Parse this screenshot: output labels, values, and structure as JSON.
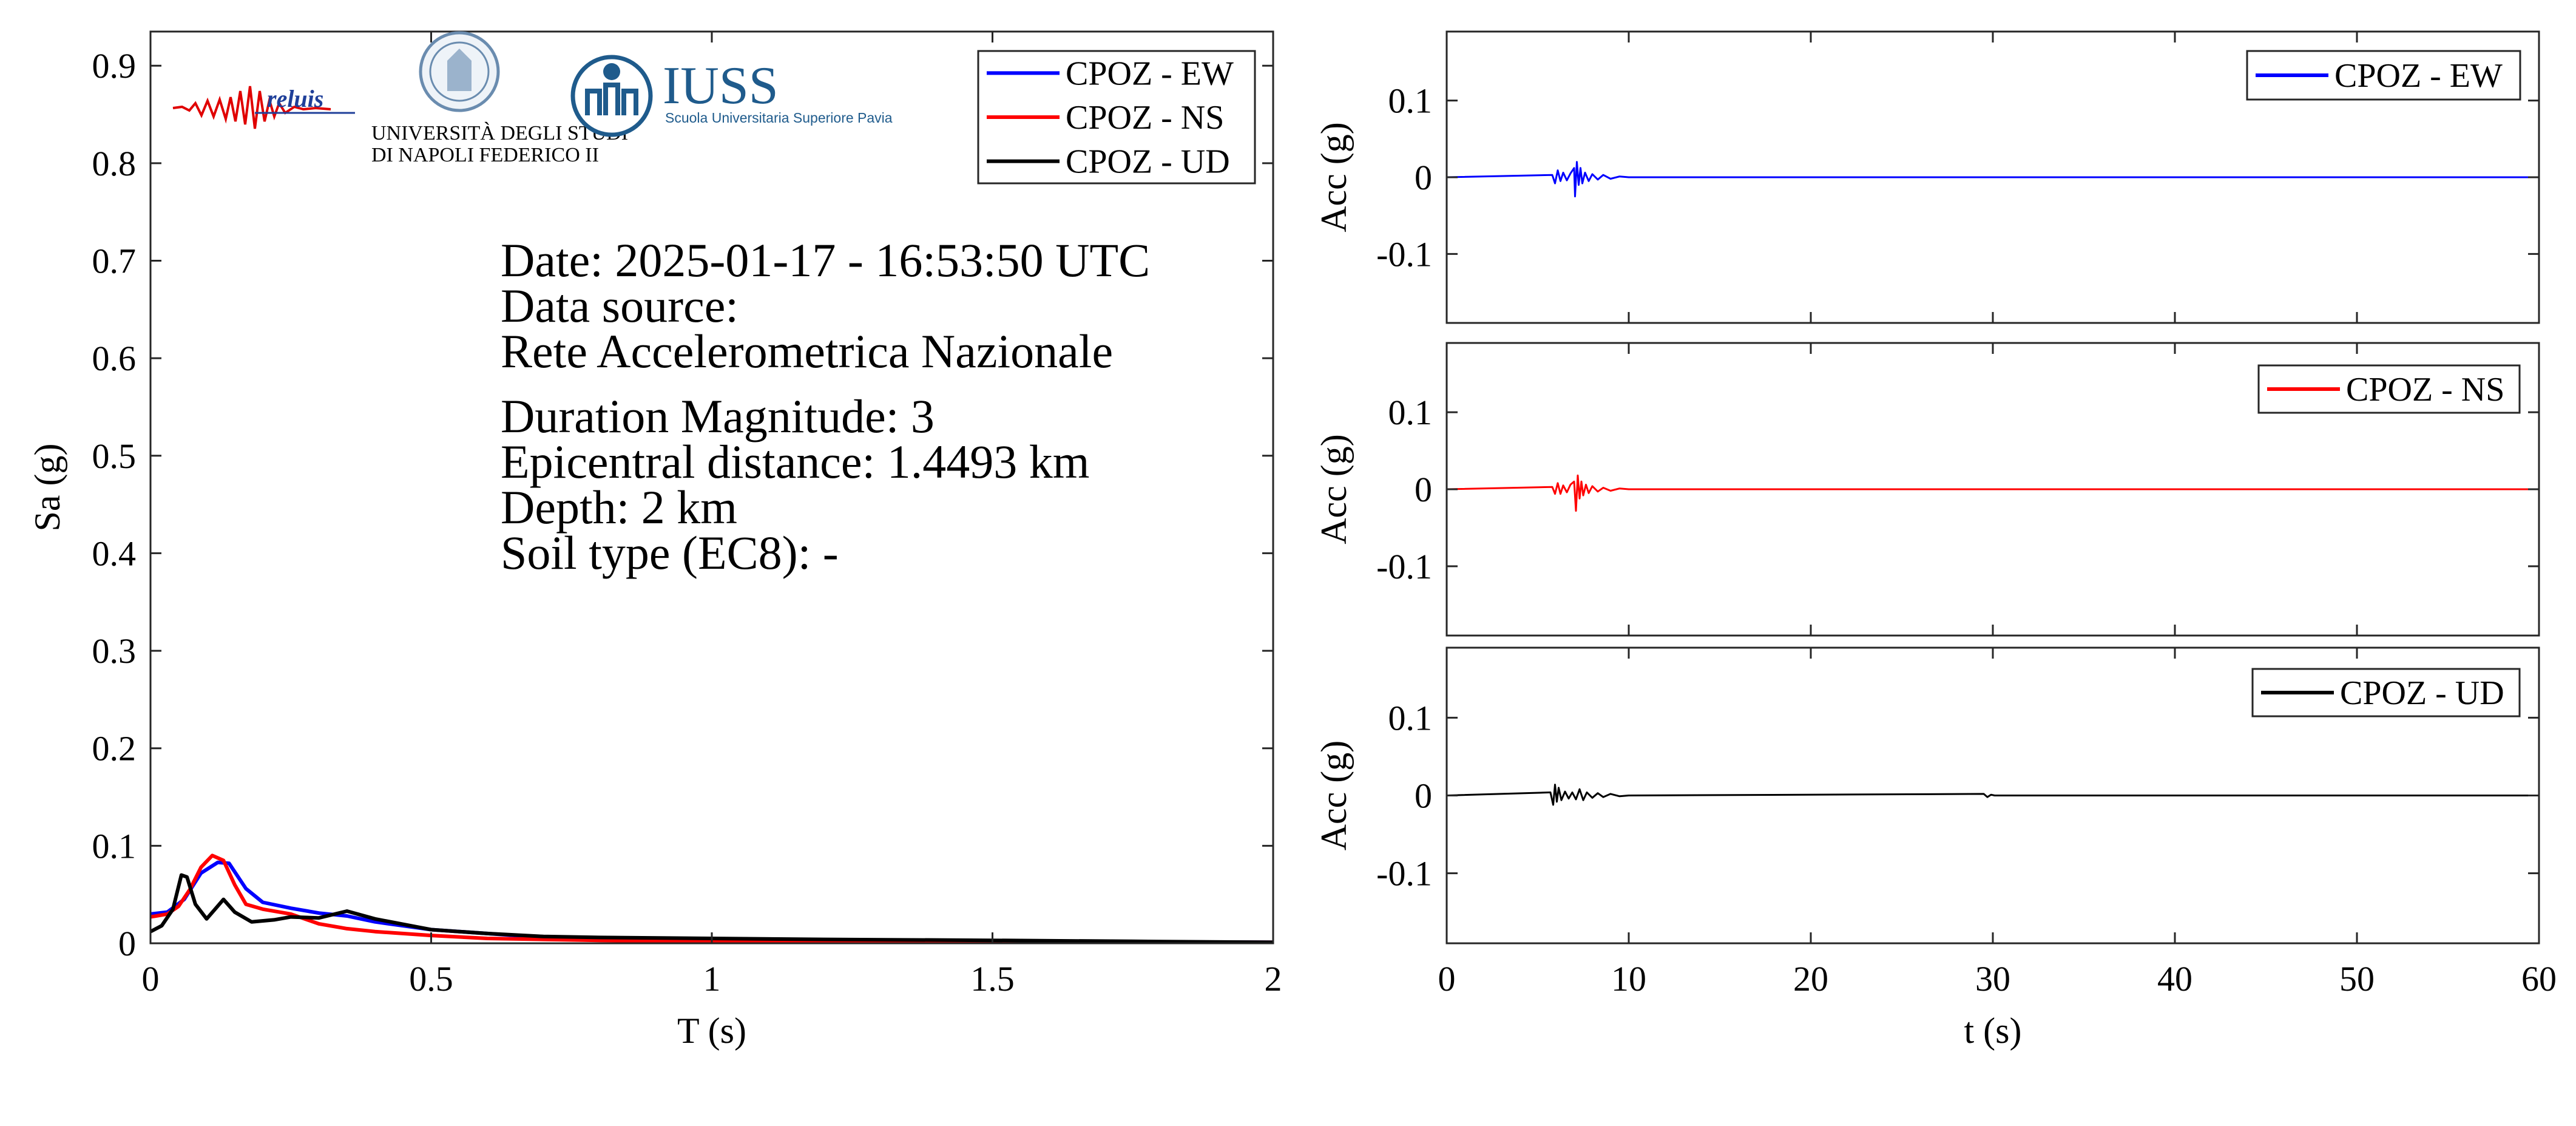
{
  "info": {
    "date": "Date: 2025-01-17 - 16:53:50 UTC",
    "source_label": "Data source:",
    "source_value": "Rete Accelerometrica Nazionale",
    "magnitude": "Duration Magnitude: 3",
    "distance": "Epicentral distance: 1.4493 km",
    "depth": "Depth: 2 km",
    "soil": "Soil type (EC8): -"
  },
  "logos": {
    "reluis": "reluis",
    "unina_line1": "UNIVERSITÀ DEGLI STUDI",
    "unina_line2": "DI NAPOLI FEDERICO II",
    "iuss_title": "IUSS",
    "iuss_subtitle": "Scuola Universitaria Superiore Pavia"
  },
  "colors": {
    "EW": "#0000ff",
    "NS": "#ff0000",
    "UD": "#000000",
    "axes": "#262626"
  },
  "chart_data": [
    {
      "type": "line",
      "title": "",
      "xlabel": "T (s)",
      "ylabel": "Sa (g)",
      "xlim": [
        0,
        2
      ],
      "ylim": [
        0,
        0.935
      ],
      "xticks": [
        0,
        0.5,
        1,
        1.5,
        2
      ],
      "xtick_labels": [
        "0",
        "0.5",
        "1",
        "1.5",
        "2"
      ],
      "yticks": [
        0,
        0.1,
        0.2,
        0.3,
        0.4,
        0.5,
        0.6,
        0.7,
        0.8,
        0.9
      ],
      "ytick_labels": [
        "0",
        "0.1",
        "0.2",
        "0.3",
        "0.4",
        "0.5",
        "0.6",
        "0.7",
        "0.8",
        "0.9"
      ],
      "grid": false,
      "legend_position": "top-right",
      "series": [
        {
          "name": "CPOZ - EW",
          "color": "#0000ff",
          "x": [
            0,
            0.03,
            0.06,
            0.09,
            0.12,
            0.14,
            0.17,
            0.2,
            0.25,
            0.3,
            0.35,
            0.4,
            0.5,
            0.6,
            0.7,
            0.8,
            1.0,
            1.2,
            1.5,
            1.75,
            2.0
          ],
          "y": [
            0.03,
            0.032,
            0.045,
            0.072,
            0.083,
            0.082,
            0.056,
            0.042,
            0.036,
            0.031,
            0.028,
            0.022,
            0.014,
            0.01,
            0.006,
            0.005,
            0.004,
            0.003,
            0.002,
            0.0015,
            0.001
          ]
        },
        {
          "name": "CPOZ - NS",
          "color": "#ff0000",
          "x": [
            0,
            0.03,
            0.05,
            0.07,
            0.09,
            0.11,
            0.13,
            0.15,
            0.17,
            0.2,
            0.25,
            0.3,
            0.35,
            0.4,
            0.5,
            0.6,
            0.7,
            0.8,
            1.0,
            1.2,
            1.5,
            1.75,
            2.0
          ],
          "y": [
            0.027,
            0.03,
            0.038,
            0.055,
            0.078,
            0.09,
            0.085,
            0.06,
            0.04,
            0.035,
            0.03,
            0.02,
            0.015,
            0.012,
            0.008,
            0.005,
            0.004,
            0.003,
            0.002,
            0.002,
            0.0015,
            0.001,
            0.001
          ]
        },
        {
          "name": "CPOZ - UD",
          "color": "#000000",
          "x": [
            0,
            0.02,
            0.04,
            0.055,
            0.065,
            0.08,
            0.1,
            0.115,
            0.13,
            0.15,
            0.18,
            0.22,
            0.25,
            0.3,
            0.35,
            0.4,
            0.5,
            0.55,
            0.6,
            0.7,
            0.8,
            1.0,
            1.2,
            1.5,
            1.75,
            2.0
          ],
          "y": [
            0.012,
            0.018,
            0.035,
            0.07,
            0.068,
            0.04,
            0.025,
            0.035,
            0.045,
            0.032,
            0.022,
            0.024,
            0.027,
            0.026,
            0.033,
            0.025,
            0.014,
            0.012,
            0.01,
            0.007,
            0.006,
            0.005,
            0.004,
            0.003,
            0.002,
            0.001
          ]
        }
      ]
    },
    {
      "type": "line",
      "title": "",
      "xlabel": "",
      "ylabel": "Acc (g)",
      "xlim": [
        0,
        60
      ],
      "ylim": [
        -0.19,
        0.19
      ],
      "yticks": [
        -0.1,
        0,
        0.1
      ],
      "ytick_labels": [
        "-0.1",
        "0",
        "0.1"
      ],
      "xticks": [
        0,
        10,
        20,
        30,
        40,
        50,
        60
      ],
      "grid": false,
      "legend_position": "top-right",
      "series": [
        {
          "name": "CPOZ - EW",
          "color": "#0000ff",
          "x": [
            5.8,
            5.95,
            6.1,
            6.25,
            6.4,
            6.6,
            6.8,
            7.0,
            7.05,
            7.15,
            7.25,
            7.35,
            7.45,
            7.6,
            7.8,
            8.0,
            8.3,
            8.6,
            9.0,
            9.5,
            10.0
          ],
          "y": [
            0.003,
            -0.008,
            0.009,
            -0.005,
            0.006,
            -0.004,
            0.005,
            0.012,
            -0.025,
            0.02,
            -0.01,
            0.012,
            -0.008,
            0.006,
            -0.005,
            0.004,
            -0.003,
            0.003,
            -0.002,
            0.001,
            0.0
          ]
        }
      ]
    },
    {
      "type": "line",
      "title": "",
      "xlabel": "",
      "ylabel": "Acc (g)",
      "xlim": [
        0,
        60
      ],
      "ylim": [
        -0.19,
        0.19
      ],
      "yticks": [
        -0.1,
        0,
        0.1
      ],
      "ytick_labels": [
        "-0.1",
        "0",
        "0.1"
      ],
      "xticks": [
        0,
        10,
        20,
        30,
        40,
        50,
        60
      ],
      "grid": false,
      "legend_position": "top-right",
      "series": [
        {
          "name": "CPOZ - NS",
          "color": "#ff0000",
          "x": [
            5.8,
            5.95,
            6.1,
            6.25,
            6.4,
            6.6,
            6.8,
            7.0,
            7.1,
            7.2,
            7.3,
            7.4,
            7.5,
            7.65,
            7.8,
            8.0,
            8.3,
            8.6,
            9.0,
            9.5,
            10.0
          ],
          "y": [
            0.003,
            -0.006,
            0.008,
            -0.006,
            0.005,
            -0.004,
            0.006,
            0.01,
            -0.028,
            0.018,
            -0.012,
            0.01,
            -0.008,
            0.006,
            -0.005,
            0.004,
            -0.003,
            0.002,
            -0.002,
            0.001,
            0.0
          ]
        }
      ]
    },
    {
      "type": "line",
      "title": "",
      "xlabel": "t (s)",
      "ylabel": "Acc (g)",
      "xlim": [
        0,
        60
      ],
      "ylim": [
        -0.19,
        0.19
      ],
      "xticks": [
        0,
        10,
        20,
        30,
        40,
        50,
        60
      ],
      "xtick_labels": [
        "0",
        "10",
        "20",
        "30",
        "40",
        "50",
        "60"
      ],
      "yticks": [
        -0.1,
        0,
        0.1
      ],
      "ytick_labels": [
        "-0.1",
        "0",
        "0.1"
      ],
      "grid": false,
      "legend_position": "top-right",
      "series": [
        {
          "name": "CPOZ - UD",
          "color": "#000000",
          "x": [
            5.7,
            5.85,
            5.95,
            6.05,
            6.15,
            6.3,
            6.5,
            6.7,
            6.9,
            7.1,
            7.3,
            7.5,
            7.7,
            8.0,
            8.3,
            8.6,
            9.0,
            9.5,
            10.0,
            29.5,
            29.7,
            29.9,
            30.1
          ],
          "y": [
            0.004,
            -0.012,
            0.014,
            -0.008,
            0.01,
            -0.006,
            0.005,
            -0.004,
            0.004,
            -0.005,
            0.008,
            -0.006,
            0.004,
            -0.003,
            0.003,
            -0.002,
            0.002,
            -0.001,
            0.0,
            0.002,
            -0.002,
            0.001,
            0.0
          ]
        }
      ]
    }
  ]
}
